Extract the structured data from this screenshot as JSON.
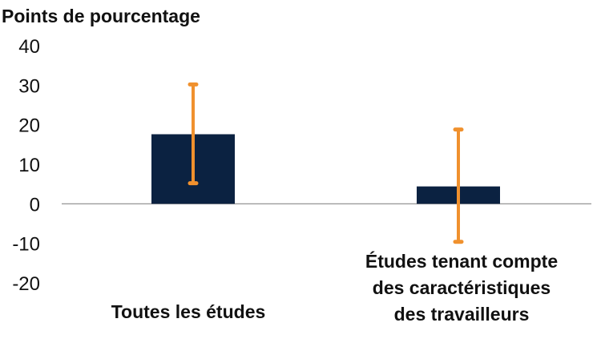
{
  "chart_data": {
    "type": "bar",
    "title": "",
    "xlabel": "",
    "ylabel": "Points de pourcentage",
    "ylim": [
      -20,
      40
    ],
    "yticks": [
      "40",
      "30",
      "20",
      "10",
      "0",
      "-10",
      "-20"
    ],
    "ytick_values": [
      40,
      30,
      20,
      10,
      0,
      -10,
      -20
    ],
    "grid": false,
    "categories": [
      [
        "Toutes les études"
      ],
      [
        "Études tenant compte",
        "des caractéristiques",
        "des travailleurs"
      ]
    ],
    "values": [
      17.6,
      4.4
    ],
    "error_low": [
      5.2,
      -9.6
    ],
    "error_high": [
      30.2,
      18.8
    ],
    "colors": {
      "bar": "#0b2241",
      "error_bar": "#f0912e",
      "axis": "#888888"
    }
  }
}
